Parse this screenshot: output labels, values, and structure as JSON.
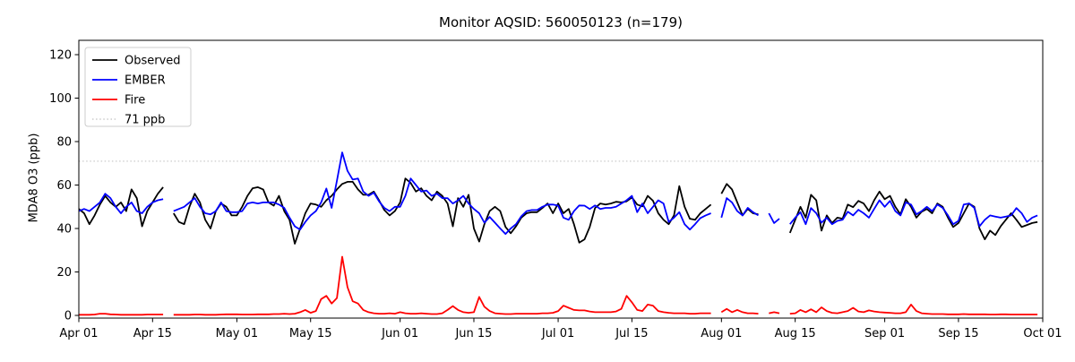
{
  "title": "Monitor AQSID: 560050123 (n=179)",
  "axes": {
    "ylabel": "MDA8 O3 (ppb)",
    "yticks": [
      0,
      20,
      40,
      60,
      80,
      100,
      120
    ],
    "ylim": [
      -1.3,
      126.6
    ],
    "total_days": 183,
    "xticks": [
      {
        "day": 0,
        "label": "Apr 01"
      },
      {
        "day": 14,
        "label": "Apr 15"
      },
      {
        "day": 30,
        "label": "May 01"
      },
      {
        "day": 44,
        "label": "May 15"
      },
      {
        "day": 61,
        "label": "Jun 01"
      },
      {
        "day": 75,
        "label": "Jun 15"
      },
      {
        "day": 91,
        "label": "Jul 01"
      },
      {
        "day": 105,
        "label": "Jul 15"
      },
      {
        "day": 122,
        "label": "Aug 01"
      },
      {
        "day": 136,
        "label": "Aug 15"
      },
      {
        "day": 153,
        "label": "Sep 01"
      },
      {
        "day": 167,
        "label": "Sep 15"
      },
      {
        "day": 183,
        "label": "Oct 01"
      }
    ]
  },
  "legend": {
    "items": [
      {
        "label": "Observed",
        "swatch": "solid",
        "color": "#000000"
      },
      {
        "label": "EMBER",
        "swatch": "solid",
        "color": "#0000ff"
      },
      {
        "label": "Fire",
        "swatch": "solid",
        "color": "#ff0000"
      },
      {
        "label": "71 ppb",
        "swatch": "dotted",
        "color": "#d3d3d3"
      }
    ]
  },
  "chart_data": {
    "type": "line",
    "title": "Monitor AQSID: 560050123 (n=179)",
    "xlabel": "",
    "ylabel": "MDA8 O3 (ppb)",
    "x_unit": "days since Apr 01 (daily values, Apr 01 - Sep 30)",
    "grid": false,
    "legend_position": "upper left",
    "threshold": {
      "value": 71,
      "label": "71 ppb",
      "color": "#d3d3d3",
      "style": "dotted"
    },
    "series": [
      {
        "name": "Observed",
        "color": "#000000",
        "values": [
          49,
          47,
          42,
          46,
          51,
          55,
          52,
          50,
          52,
          48,
          58,
          54,
          41,
          48,
          52,
          56,
          59,
          null,
          47,
          43,
          42,
          50,
          56,
          52,
          44,
          40,
          48,
          51.5,
          50,
          46,
          46,
          50,
          55,
          58.5,
          59,
          58,
          52,
          50.5,
          55,
          48,
          44,
          33,
          40,
          47,
          51.5,
          51,
          50,
          53,
          55,
          58,
          60.5,
          61.5,
          61.5,
          58,
          55.5,
          55.5,
          57,
          53,
          48.5,
          46,
          48,
          52,
          63,
          61,
          57,
          58.5,
          55,
          53,
          57,
          55,
          51.5,
          41,
          54,
          50,
          55.5,
          40,
          34,
          42,
          48,
          50,
          48,
          40.7,
          37.8,
          41,
          45,
          47,
          47.5,
          47.5,
          49.4,
          51.5,
          47,
          51.5,
          47,
          49,
          42,
          33.5,
          35,
          40.7,
          49.4,
          51.5,
          51,
          51.5,
          52.3,
          52,
          52.5,
          54.3,
          51,
          50.2,
          55,
          52.8,
          47,
          44,
          42,
          46,
          59.5,
          50,
          44.5,
          44,
          47,
          49,
          51,
          null,
          56,
          60.5,
          58,
          52,
          46,
          49,
          47,
          46.5,
          null,
          null,
          null,
          null,
          null,
          38,
          44,
          50,
          45,
          55.5,
          53,
          39,
          46,
          42.5,
          45,
          44.5,
          51,
          49.8,
          52.7,
          51.5,
          48,
          53,
          57,
          53.5,
          55,
          50,
          46.5,
          53.5,
          50,
          45,
          47.7,
          49,
          47,
          51.5,
          50,
          45,
          40.7,
          42.5,
          47,
          51.5,
          50,
          40,
          35,
          39,
          37,
          41,
          44,
          47,
          44,
          40.7,
          41.6,
          42.5,
          43
        ]
      },
      {
        "name": "EMBER",
        "color": "#0000ff",
        "values": [
          48,
          49,
          48,
          50,
          52,
          56,
          54,
          50,
          47,
          50,
          52,
          48,
          47,
          50,
          52,
          53,
          53.5,
          null,
          48,
          49,
          50,
          52,
          54,
          50,
          47,
          46.5,
          48,
          52,
          48,
          47.5,
          47.5,
          48,
          51.5,
          52,
          51.5,
          52,
          52,
          52,
          51,
          49.5,
          45,
          41,
          39.5,
          43,
          46,
          48,
          52,
          58.4,
          49.5,
          62,
          75,
          66.5,
          62.5,
          63,
          57,
          55,
          56.5,
          52.5,
          49.5,
          48,
          50,
          50,
          55,
          63,
          60,
          57,
          57.5,
          55,
          56,
          54,
          54,
          51.5,
          53,
          55,
          51.5,
          49,
          47,
          42.7,
          45.3,
          42.7,
          40,
          37.5,
          40,
          42,
          45.6,
          48,
          48.5,
          48.5,
          50,
          51,
          51,
          50.5,
          45,
          44,
          48,
          50.6,
          50.5,
          49,
          50.6,
          49,
          49.5,
          49.5,
          50,
          51.5,
          53,
          55,
          47.5,
          51.5,
          47,
          50,
          53,
          51.5,
          43,
          45,
          47.5,
          42,
          39.5,
          42,
          44.8,
          46,
          47,
          null,
          45,
          54,
          52,
          48,
          46,
          49.5,
          47.5,
          46,
          null,
          47,
          42.5,
          44.5,
          null,
          42,
          45,
          47.5,
          42,
          49.4,
          47,
          42.7,
          45,
          42,
          43.5,
          44,
          47.7,
          46,
          48.6,
          47,
          45,
          49,
          53,
          50,
          52.7,
          48,
          46,
          52,
          51,
          46.5,
          48,
          50,
          48,
          51,
          49.5,
          46,
          42,
          43.5,
          51,
          51.5,
          49.5,
          41,
          44,
          46,
          45.5,
          45,
          45.5,
          46,
          49.4,
          47,
          43,
          45,
          46
        ]
      },
      {
        "name": "Fire",
        "color": "#ff0000",
        "values": [
          0.3,
          0.3,
          0.3,
          0.4,
          0.8,
          0.8,
          0.5,
          0.4,
          0.3,
          0.3,
          0.3,
          0.3,
          0.3,
          0.4,
          0.4,
          0.4,
          0.4,
          null,
          0.3,
          0.3,
          0.3,
          0.3,
          0.4,
          0.4,
          0.3,
          0.3,
          0.3,
          0.4,
          0.5,
          0.5,
          0.5,
          0.4,
          0.4,
          0.4,
          0.5,
          0.5,
          0.5,
          0.6,
          0.6,
          0.8,
          0.6,
          0.8,
          1.5,
          2.5,
          1.2,
          2.0,
          7.5,
          9.0,
          5.5,
          8.0,
          27.0,
          13.0,
          6.5,
          5.5,
          2.5,
          1.5,
          1.0,
          0.8,
          0.8,
          1.0,
          0.8,
          1.5,
          1.0,
          0.8,
          0.8,
          1.0,
          0.8,
          0.6,
          0.6,
          1.0,
          2.5,
          4.3,
          2.5,
          1.5,
          1.2,
          1.5,
          8.5,
          4.0,
          2.0,
          1.0,
          0.8,
          0.6,
          0.6,
          0.8,
          0.8,
          0.8,
          0.8,
          0.8,
          1.0,
          1.0,
          1.2,
          2.0,
          4.5,
          3.5,
          2.5,
          2.3,
          2.3,
          1.8,
          1.5,
          1.5,
          1.5,
          1.5,
          1.8,
          3.0,
          9.0,
          6.0,
          2.5,
          2.0,
          5.0,
          4.5,
          2.0,
          1.5,
          1.2,
          1.0,
          1.0,
          1.0,
          0.8,
          0.8,
          1.0,
          1.0,
          1.0,
          null,
          1.5,
          3.0,
          1.5,
          2.5,
          1.5,
          1.0,
          1.0,
          0.8,
          null,
          1.0,
          1.5,
          1.0,
          null,
          0.8,
          1.0,
          2.5,
          1.5,
          2.8,
          1.5,
          3.7,
          2.0,
          1.2,
          1.0,
          1.5,
          2.0,
          3.5,
          1.8,
          1.5,
          2.3,
          1.8,
          1.5,
          1.3,
          1.2,
          1.0,
          1.0,
          1.5,
          5.0,
          2.0,
          1.0,
          0.8,
          0.6,
          0.6,
          0.6,
          0.5,
          0.5,
          0.5,
          0.6,
          0.5,
          0.5,
          0.5,
          0.5,
          0.4,
          0.4,
          0.5,
          0.5,
          0.4,
          0.4,
          0.4,
          0.4,
          0.4,
          0.4
        ]
      }
    ]
  }
}
